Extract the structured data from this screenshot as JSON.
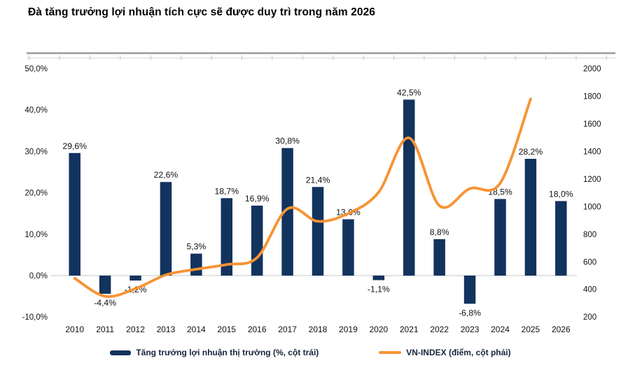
{
  "page": {
    "title": "Đà tăng trưởng lợi nhuận tích cực sẽ được duy trì trong năm 2026"
  },
  "legend": {
    "items": [
      {
        "label": "Tăng trưởng lợi nhuận thị trường (%, cột trái)",
        "marker": "bar",
        "color": "#12335E"
      },
      {
        "label": "VN-INDEX (điểm, cột phải)",
        "marker": "line",
        "color": "#F79333"
      }
    ]
  },
  "chart_data": {
    "type": "combo",
    "title": "Đà tăng trưởng lợi nhuận tích cực sẽ được duy trì trong năm 2026",
    "categories": [
      "2010",
      "2011",
      "2012",
      "2013",
      "2014",
      "2015",
      "2016",
      "2017",
      "2018",
      "2019",
      "2020",
      "2021",
      "2022",
      "2023",
      "2024",
      "2025",
      "2026"
    ],
    "series": [
      {
        "name": "Tăng trưởng lợi nhuận thị trường (%, cột trái)",
        "type": "bar",
        "axis": "left",
        "color": "#12335E",
        "values": [
          29.6,
          -4.4,
          -1.2,
          22.6,
          5.3,
          18.7,
          16.9,
          30.8,
          21.4,
          13.6,
          -1.1,
          42.5,
          8.8,
          -6.8,
          18.5,
          28.2,
          18.0
        ],
        "labels": [
          "29,6%",
          "-4,4%",
          "-1,2%",
          "22,6%",
          "5,3%",
          "18,7%",
          "16,9%",
          "30,8%",
          "21,4%",
          "13,6%",
          "-1,1%",
          "42,5%",
          "8,8%",
          "-6,8%",
          "18,5%",
          "28,2%",
          "18,0%"
        ]
      },
      {
        "name": "VN-INDEX (điểm, cột phải)",
        "type": "line",
        "axis": "right",
        "color": "#F79333",
        "categories": [
          "2010",
          "2011",
          "2012",
          "2013",
          "2014",
          "2015",
          "2016",
          "2017",
          "2018",
          "2019",
          "2020",
          "2021",
          "2022",
          "2023",
          "2024",
          "2025"
        ],
        "values": [
          480,
          350,
          405,
          505,
          546,
          580,
          630,
          984,
          893,
          950,
          1104,
          1498,
          1007,
          1130,
          1170,
          1780
        ]
      }
    ],
    "left_axis": {
      "min": -10,
      "max": 50,
      "step": 10,
      "tick_labels": [
        "50,0%",
        "40,0%",
        "30,0%",
        "20,0%",
        "10,0%",
        "0,0%",
        "-10,0%"
      ]
    },
    "right_axis": {
      "min": 200,
      "max": 2000,
      "step": 200,
      "tick_labels": [
        "2000",
        "1800",
        "1600",
        "1400",
        "1200",
        "1000",
        "800",
        "600",
        "400",
        "200"
      ]
    },
    "grid": "off",
    "legend_position": "bottom",
    "colors": {
      "bar": "#12335E",
      "line": "#F79333",
      "zero_line": "#D9D9D9",
      "top_border": "#9B9B9B",
      "tick_line": "#C8C8C8",
      "text": "#111111"
    }
  }
}
